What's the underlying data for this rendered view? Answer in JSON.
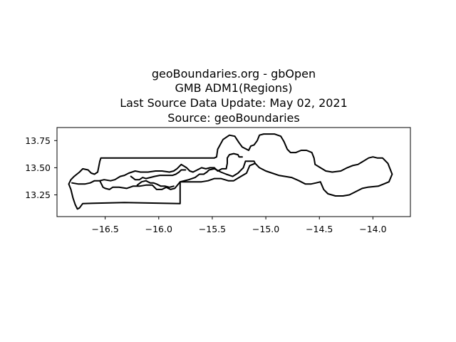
{
  "figure": {
    "title_lines": [
      "geoBoundaries.org - gbOpen",
      "GMB ADM1(Regions)",
      "Last Source Data Update: May 02, 2021",
      "Source: geoBoundaries"
    ]
  },
  "chart_data": {
    "type": "map",
    "title": "geoBoundaries.org - gbOpen\nGMB ADM1(Regions)\nLast Source Data Update: May 02, 2021\nSource: geoBoundaries",
    "xlabel": "",
    "ylabel": "",
    "xlim": [
      -16.95,
      -13.65
    ],
    "ylim": [
      13.05,
      13.87
    ],
    "x_ticks": [
      -16.5,
      -16.0,
      -15.5,
      -15.0,
      -14.5,
      -14.0
    ],
    "x_tick_labels": [
      "−16.5",
      "−16.0",
      "−15.5",
      "−15.0",
      "−14.5",
      "−14.0"
    ],
    "y_ticks": [
      13.25,
      13.5,
      13.75
    ],
    "y_tick_labels": [
      "13.25",
      "13.50",
      "13.75"
    ],
    "grid": false,
    "boundary_color": "#000000",
    "regions": [
      {
        "outline": [
          [
            -16.82,
            13.39
          ],
          [
            -16.79,
            13.42
          ],
          [
            -16.74,
            13.46
          ],
          [
            -16.71,
            13.49
          ],
          [
            -16.66,
            13.48
          ],
          [
            -16.63,
            13.45
          ],
          [
            -16.6,
            13.44
          ],
          [
            -16.57,
            13.46
          ],
          [
            -16.56,
            13.51
          ],
          [
            -16.55,
            13.56
          ],
          [
            -16.54,
            13.59
          ],
          [
            -15.77,
            13.59
          ],
          [
            -15.48,
            13.59
          ],
          [
            -15.46,
            13.6
          ],
          [
            -15.45,
            13.67
          ],
          [
            -15.4,
            13.76
          ],
          [
            -15.34,
            13.8
          ],
          [
            -15.29,
            13.79
          ],
          [
            -15.25,
            13.73
          ],
          [
            -15.22,
            13.69
          ],
          [
            -15.16,
            13.66
          ],
          [
            -15.14,
            13.7
          ],
          [
            -15.11,
            13.71
          ],
          [
            -15.08,
            13.75
          ],
          [
            -15.06,
            13.8
          ],
          [
            -15.02,
            13.81
          ],
          [
            -14.92,
            13.81
          ],
          [
            -14.86,
            13.79
          ],
          [
            -14.83,
            13.74
          ],
          [
            -14.8,
            13.67
          ],
          [
            -14.77,
            13.64
          ],
          [
            -14.72,
            13.64
          ],
          [
            -14.67,
            13.66
          ],
          [
            -14.62,
            13.66
          ],
          [
            -14.57,
            13.64
          ],
          [
            -14.55,
            13.59
          ],
          [
            -14.54,
            13.53
          ],
          [
            -14.49,
            13.5
          ],
          [
            -14.44,
            13.47
          ],
          [
            -14.38,
            13.46
          ],
          [
            -14.3,
            13.47
          ],
          [
            -14.24,
            13.5
          ],
          [
            -14.19,
            13.52
          ],
          [
            -14.14,
            13.53
          ],
          [
            -14.09,
            13.56
          ],
          [
            -14.04,
            13.59
          ],
          [
            -14.0,
            13.6
          ],
          [
            -13.96,
            13.59
          ],
          [
            -13.91,
            13.59
          ],
          [
            -13.86,
            13.54
          ],
          [
            -13.82,
            13.44
          ],
          [
            -13.85,
            13.37
          ],
          [
            -13.9,
            13.35
          ],
          [
            -13.95,
            13.33
          ],
          [
            -14.05,
            13.32
          ],
          [
            -14.1,
            13.31
          ],
          [
            -14.18,
            13.27
          ],
          [
            -14.22,
            13.25
          ],
          [
            -14.28,
            13.24
          ],
          [
            -14.35,
            13.24
          ],
          [
            -14.42,
            13.26
          ],
          [
            -14.46,
            13.3
          ],
          [
            -14.49,
            13.37
          ],
          [
            -14.53,
            13.36
          ],
          [
            -14.58,
            13.35
          ],
          [
            -14.63,
            13.35
          ],
          [
            -14.69,
            13.38
          ],
          [
            -14.76,
            13.41
          ],
          [
            -14.82,
            13.42
          ],
          [
            -14.88,
            13.43
          ],
          [
            -14.94,
            13.45
          ],
          [
            -15.0,
            13.47
          ],
          [
            -15.06,
            13.5
          ],
          [
            -15.1,
            13.54
          ],
          [
            -15.15,
            13.52
          ],
          [
            -15.18,
            13.45
          ],
          [
            -15.25,
            13.41
          ],
          [
            -15.3,
            13.38
          ],
          [
            -15.35,
            13.38
          ],
          [
            -15.42,
            13.4
          ],
          [
            -15.48,
            13.4
          ],
          [
            -15.54,
            13.38
          ],
          [
            -15.6,
            13.37
          ],
          [
            -15.7,
            13.37
          ],
          [
            -15.8,
            13.37
          ],
          [
            -15.8,
            13.17
          ],
          [
            -16.32,
            13.18
          ],
          [
            -16.71,
            13.17
          ],
          [
            -16.74,
            13.13
          ],
          [
            -16.76,
            13.12
          ],
          [
            -16.78,
            13.16
          ],
          [
            -16.8,
            13.22
          ],
          [
            -16.82,
            13.3
          ],
          [
            -16.84,
            13.35
          ],
          [
            -16.82,
            13.39
          ]
        ]
      },
      {
        "outline": [
          [
            -16.81,
            13.36
          ],
          [
            -16.75,
            13.35
          ],
          [
            -16.69,
            13.35
          ],
          [
            -16.64,
            13.36
          ],
          [
            -16.6,
            13.38
          ],
          [
            -16.55,
            13.38
          ],
          [
            -16.52,
            13.32
          ],
          [
            -16.5,
            13.31
          ],
          [
            -16.46,
            13.3
          ],
          [
            -16.43,
            13.32
          ],
          [
            -16.37,
            13.32
          ],
          [
            -16.3,
            13.31
          ],
          [
            -16.24,
            13.33
          ],
          [
            -16.18,
            13.33
          ],
          [
            -16.12,
            13.34
          ],
          [
            -16.06,
            13.34
          ],
          [
            -16.02,
            13.3
          ],
          [
            -15.97,
            13.3
          ],
          [
            -15.93,
            13.32
          ],
          [
            -15.89,
            13.3
          ],
          [
            -15.85,
            13.31
          ],
          [
            -15.8,
            13.37
          ],
          [
            -15.72,
            13.39
          ],
          [
            -15.66,
            13.41
          ],
          [
            -15.62,
            13.44
          ],
          [
            -15.58,
            13.44
          ],
          [
            -15.55,
            13.46
          ],
          [
            -15.53,
            13.48
          ],
          [
            -15.48,
            13.49
          ],
          [
            -15.42,
            13.46
          ],
          [
            -15.37,
            13.44
          ],
          [
            -15.31,
            13.42
          ],
          [
            -15.26,
            13.45
          ],
          [
            -15.21,
            13.5
          ],
          [
            -15.19,
            13.56
          ],
          [
            -15.15,
            13.56
          ],
          [
            -15.11,
            13.56
          ],
          [
            -15.1,
            13.54
          ]
        ]
      },
      {
        "outline": [
          [
            -16.55,
            13.38
          ],
          [
            -16.51,
            13.39
          ],
          [
            -16.45,
            13.38
          ],
          [
            -16.41,
            13.39
          ],
          [
            -16.36,
            13.42
          ],
          [
            -16.32,
            13.43
          ],
          [
            -16.28,
            13.45
          ],
          [
            -16.22,
            13.47
          ],
          [
            -16.17,
            13.46
          ],
          [
            -16.1,
            13.46
          ],
          [
            -16.03,
            13.47
          ],
          [
            -15.97,
            13.47
          ],
          [
            -15.9,
            13.46
          ],
          [
            -15.86,
            13.47
          ],
          [
            -15.83,
            13.49
          ],
          [
            -15.79,
            13.53
          ],
          [
            -15.74,
            13.5
          ],
          [
            -15.71,
            13.47
          ],
          [
            -15.68,
            13.46
          ],
          [
            -15.64,
            13.48
          ],
          [
            -15.6,
            13.5
          ],
          [
            -15.56,
            13.49
          ],
          [
            -15.52,
            13.5
          ],
          [
            -15.48,
            13.5
          ],
          [
            -15.45,
            13.47
          ],
          [
            -15.41,
            13.49
          ],
          [
            -15.37,
            13.49
          ],
          [
            -15.36,
            13.54
          ],
          [
            -15.36,
            13.59
          ],
          [
            -15.34,
            13.62
          ],
          [
            -15.3,
            13.63
          ],
          [
            -15.26,
            13.62
          ],
          [
            -15.25,
            13.6
          ],
          [
            -15.22,
            13.6
          ]
        ]
      },
      {
        "outline": [
          [
            -16.26,
            13.42
          ],
          [
            -16.22,
            13.39
          ],
          [
            -16.18,
            13.39
          ],
          [
            -16.15,
            13.41
          ],
          [
            -16.12,
            13.4
          ],
          [
            -16.08,
            13.41
          ],
          [
            -16.04,
            13.42
          ],
          [
            -15.99,
            13.43
          ],
          [
            -15.93,
            13.43
          ],
          [
            -15.87,
            13.43
          ],
          [
            -15.84,
            13.44
          ],
          [
            -15.81,
            13.46
          ],
          [
            -15.79,
            13.48
          ],
          [
            -15.75,
            13.48
          ]
        ]
      },
      {
        "outline": [
          [
            -16.2,
            13.34
          ],
          [
            -16.16,
            13.37
          ],
          [
            -16.12,
            13.38
          ],
          [
            -16.08,
            13.36
          ],
          [
            -16.05,
            13.36
          ],
          [
            -16.02,
            13.35
          ],
          [
            -15.98,
            13.33
          ],
          [
            -15.94,
            13.33
          ],
          [
            -15.9,
            13.32
          ],
          [
            -15.86,
            13.33
          ]
        ]
      }
    ]
  }
}
